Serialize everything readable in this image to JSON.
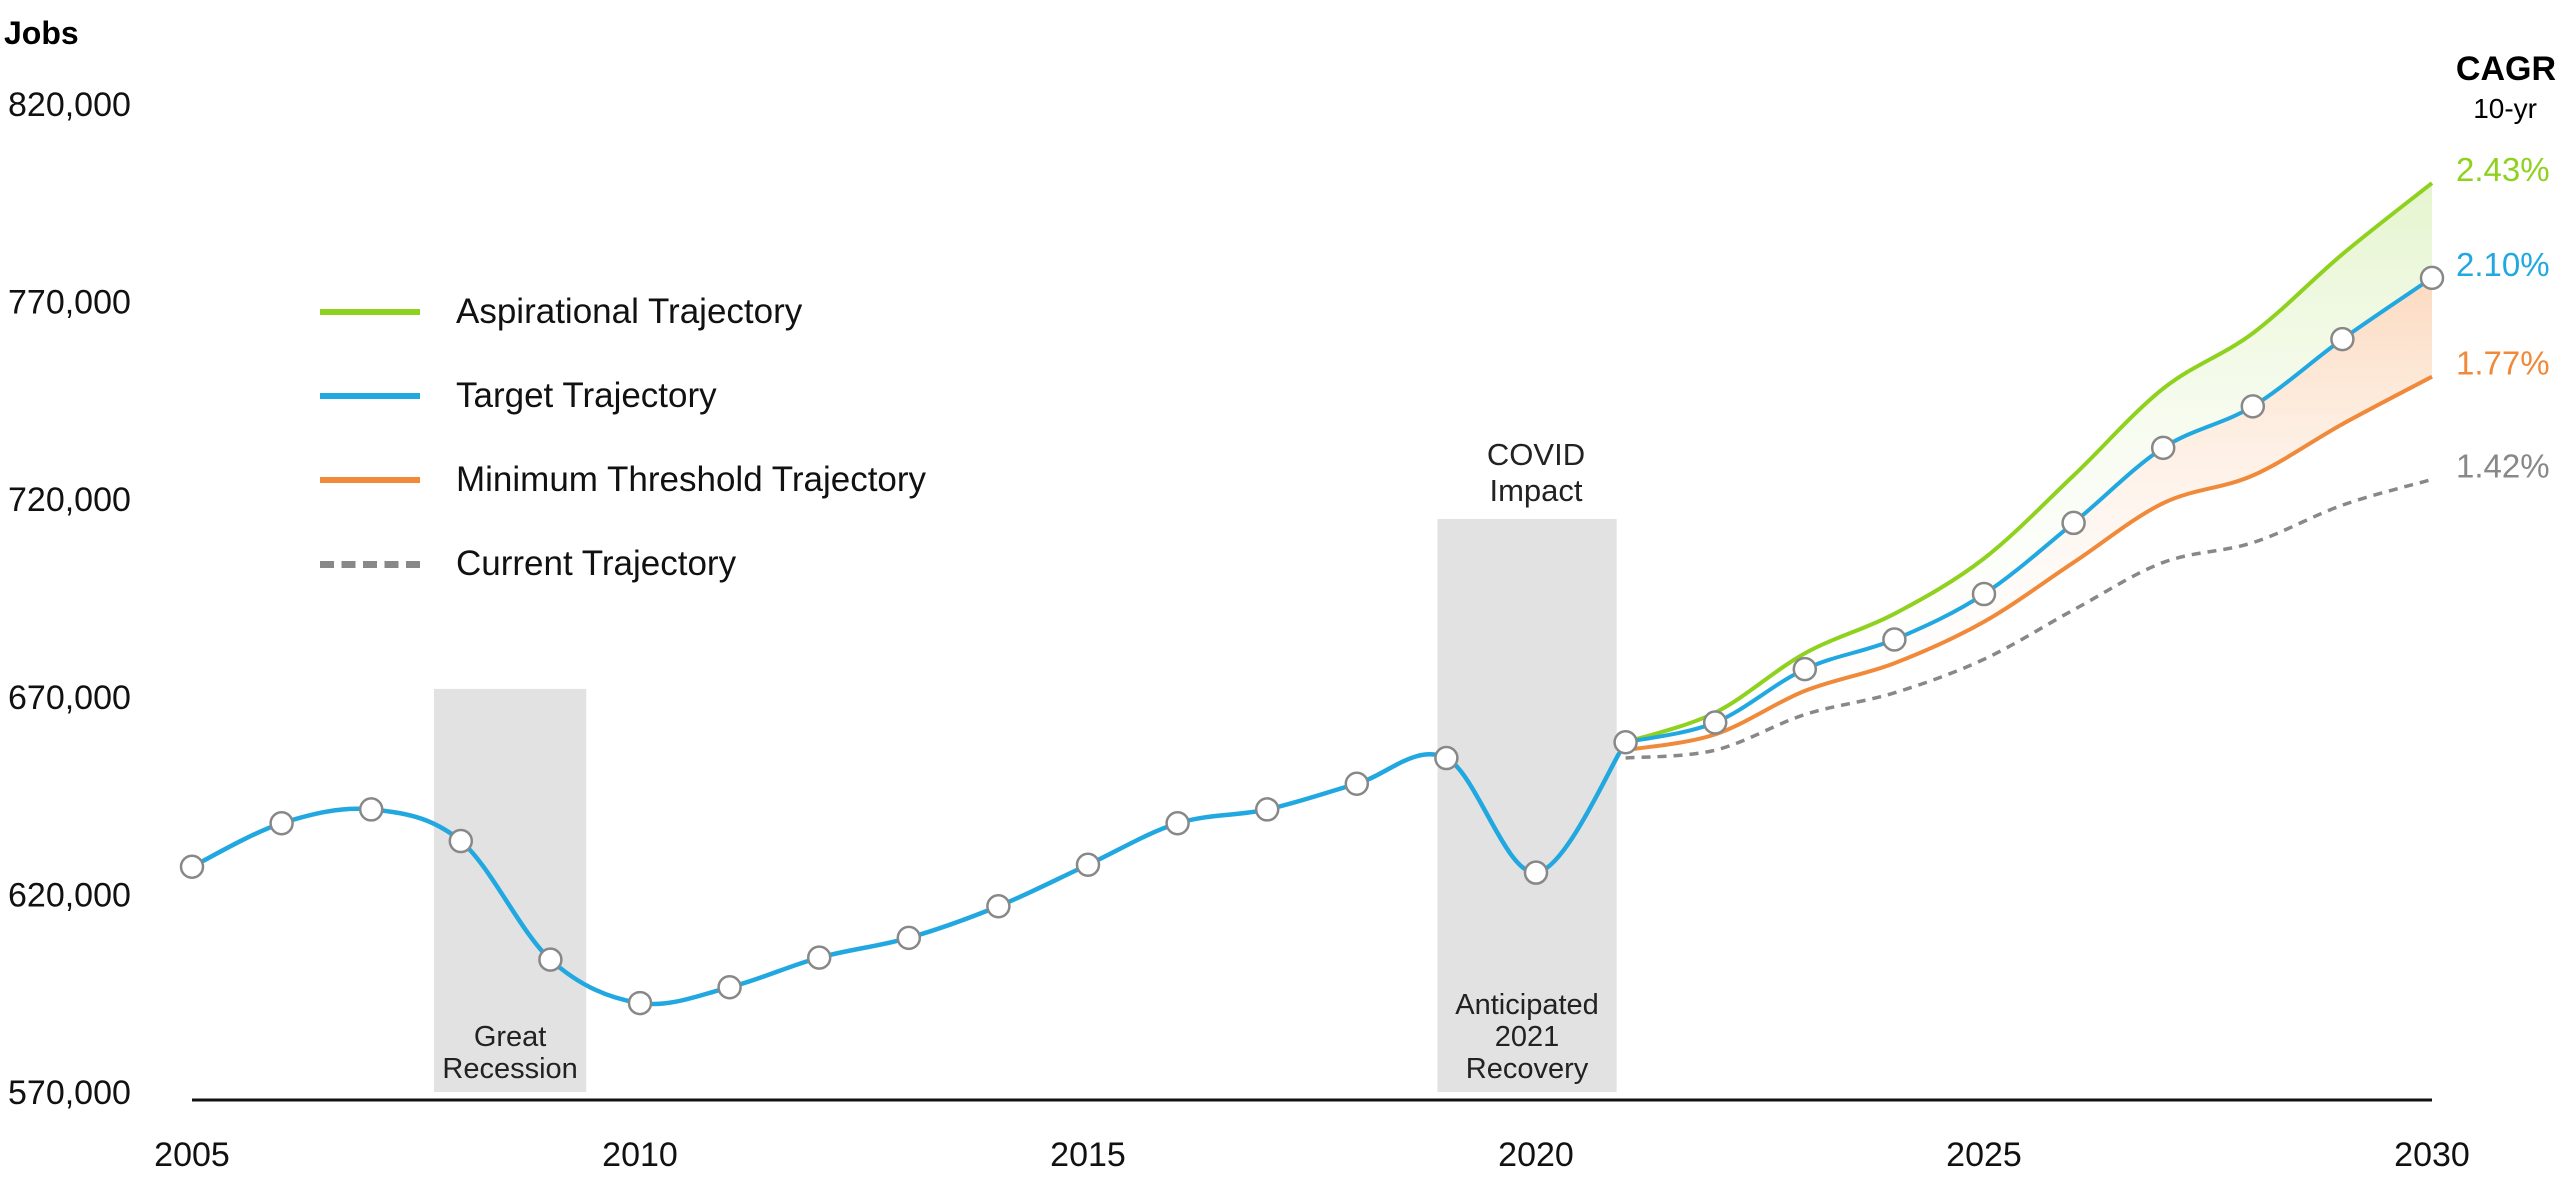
{
  "chart_data": {
    "type": "line",
    "ylabel": "Jobs",
    "xlim": [
      2005,
      2030
    ],
    "ylim": [
      570000,
      820000
    ],
    "y_ticks": [
      "570,000",
      "620,000",
      "670,000",
      "720,000",
      "770,000",
      "820,000"
    ],
    "x_ticks": [
      "2005",
      "2010",
      "2015",
      "2020",
      "2025",
      "2030"
    ],
    "cagr_header": "CAGR",
    "cagr_subheader": "10-yr",
    "historical": {
      "color": "#22a8e0",
      "x": [
        2005,
        2006,
        2007,
        2008,
        2009,
        2010,
        2011,
        2012,
        2013,
        2014,
        2015,
        2016,
        2017,
        2018,
        2019,
        2020,
        2021
      ],
      "y": [
        627000,
        638000,
        641500,
        633500,
        603500,
        592500,
        596500,
        604000,
        609000,
        617000,
        627500,
        638000,
        641500,
        648000,
        654500,
        625500,
        658500
      ]
    },
    "series": [
      {
        "name": "Aspirational Trajectory",
        "color": "#8fd11f",
        "style": "solid",
        "cagr": "2.43%",
        "x": [
          2021,
          2022,
          2023,
          2024,
          2025,
          2026,
          2027,
          2028,
          2029,
          2030
        ],
        "y": [
          658500,
          666000,
          681000,
          691000,
          705000,
          726000,
          748000,
          762000,
          782000,
          800000
        ]
      },
      {
        "name": "Target Trajectory",
        "color": "#22a8e0",
        "style": "solid",
        "markers": true,
        "cagr": "2.10%",
        "x": [
          2021,
          2022,
          2023,
          2024,
          2025,
          2026,
          2027,
          2028,
          2029,
          2030
        ],
        "y": [
          658500,
          663500,
          677000,
          684500,
          696000,
          714000,
          733000,
          743500,
          760500,
          776000
        ]
      },
      {
        "name": "Minimum Threshold Trajectory",
        "color": "#f08a3a",
        "style": "solid",
        "cagr": "1.77%",
        "x": [
          2021,
          2022,
          2023,
          2024,
          2025,
          2026,
          2027,
          2028,
          2029,
          2030
        ],
        "y": [
          656500,
          660500,
          671500,
          678500,
          689000,
          704000,
          719000,
          726000,
          739000,
          751000
        ]
      },
      {
        "name": "Current Trajectory",
        "color": "#888888",
        "style": "dashed",
        "cagr": "1.42%",
        "x": [
          2021,
          2022,
          2023,
          2024,
          2025,
          2026,
          2027,
          2028,
          2029,
          2030
        ],
        "y": [
          654500,
          656500,
          665500,
          671000,
          679500,
          692000,
          704000,
          709000,
          718500,
          725000
        ]
      }
    ],
    "shaded_regions": [
      {
        "x_start": 2007.7,
        "x_end": 2009.4,
        "y_top": 672000,
        "label_lines": [
          "Great",
          "Recession"
        ],
        "label_position": "bottom"
      },
      {
        "x_start": 2018.9,
        "x_end": 2020.9,
        "y_top": 715000,
        "label_lines": [
          "Anticipated",
          "2021",
          "Recovery"
        ],
        "label_position": "bottom"
      }
    ],
    "annotations": [
      {
        "lines": [
          "COVID",
          "Impact"
        ],
        "x": 2020
      }
    ]
  }
}
